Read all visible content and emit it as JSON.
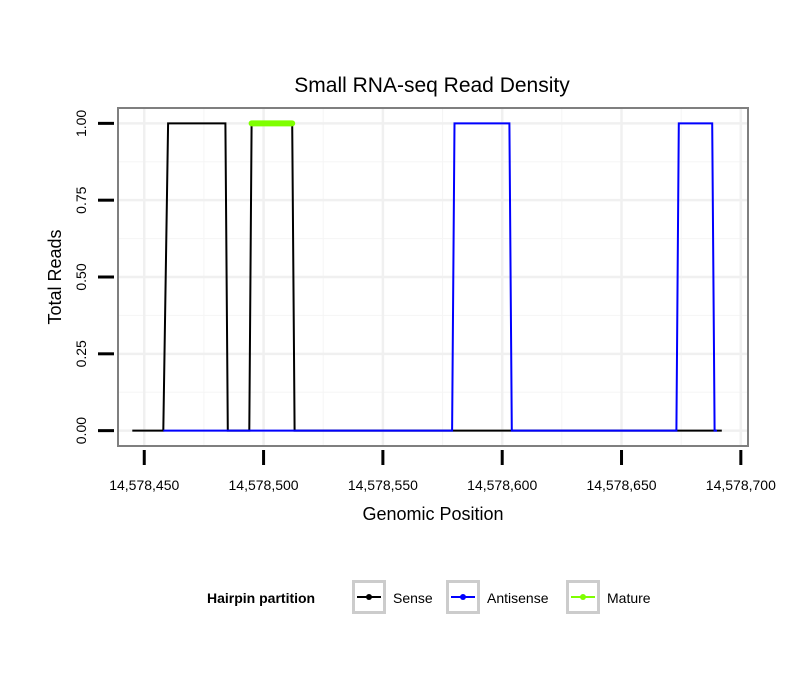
{
  "chart_data": {
    "type": "line",
    "title": "Small RNA-seq Read Density",
    "xlabel": "Genomic Position",
    "ylabel": "Total Reads",
    "xlim": [
      14578439,
      14578703
    ],
    "ylim": [
      -0.05,
      1.05
    ],
    "x_ticks": [
      14578450,
      14578500,
      14578550,
      14578600,
      14578650,
      14578700
    ],
    "x_tick_labels": [
      "14,578,450",
      "14,578,500",
      "14,578,550",
      "14,578,600",
      "14,578,650",
      "14,578,700"
    ],
    "y_ticks": [
      0,
      0.25,
      0.5,
      0.75,
      1
    ],
    "y_tick_labels": [
      "0.00",
      "0.25",
      "0.50",
      "0.75",
      "1.00"
    ],
    "grid": true,
    "legend_position": "bottom",
    "series": [
      {
        "name": "Sense",
        "color": "#000000",
        "x": [
          14578445,
          14578458,
          14578460,
          14578484,
          14578485,
          14578494,
          14578495,
          14578512,
          14578513,
          14578692
        ],
        "y": [
          0,
          0,
          1,
          1,
          0,
          0,
          1,
          1,
          0,
          0
        ]
      },
      {
        "name": "Antisense",
        "color": "#0000ff",
        "x": [
          14578458,
          14578579,
          14578580,
          14578603,
          14578604,
          14578673,
          14578674,
          14578688,
          14578689,
          14578690
        ],
        "y": [
          0,
          0,
          1,
          1,
          0,
          0,
          1,
          1,
          0,
          0
        ]
      },
      {
        "name": "Mature",
        "color": "#7fff00",
        "x": [
          14578495,
          14578512
        ],
        "y": [
          1,
          1
        ]
      }
    ]
  },
  "legend": {
    "title": "Hairpin partition",
    "items": [
      {
        "label": "Sense",
        "color": "#000000"
      },
      {
        "label": "Antisense",
        "color": "#0000ff"
      },
      {
        "label": "Mature",
        "color": "#7fff00"
      }
    ]
  }
}
